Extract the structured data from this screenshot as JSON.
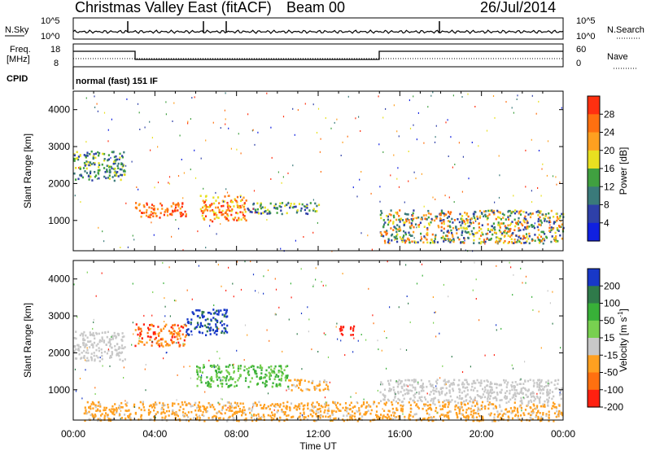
{
  "header": {
    "station": "Christmas Valley East (fitACF)",
    "beam": "Beam 00",
    "date": "26/Jul/2014"
  },
  "strip_labels": {
    "nsky": "N.Sky",
    "nsearch": "N.Search",
    "freq": "Freq.",
    "freq_unit": "[MHz]",
    "nave": "Nave",
    "cpid": "CPID",
    "cpid_value": "normal (fast) 151 IF"
  },
  "strip_ticks": {
    "noise_left": [
      "10^5",
      "10^0"
    ],
    "noise_right": [
      "10^5",
      "10^0"
    ],
    "freq_left": [
      "18",
      "8"
    ],
    "nave_right": [
      "60",
      "0"
    ]
  },
  "chart_data": [
    {
      "type": "heatmap",
      "title": "",
      "ylabel": "Slant Range [km]",
      "xlabel": "Time UT",
      "ylim": [
        180,
        4500
      ],
      "xlim": [
        "00:00",
        "24:00"
      ],
      "yticks": [
        1000,
        2000,
        3000,
        4000
      ],
      "xticks": [
        "00:00",
        "04:00",
        "08:00",
        "12:00",
        "16:00",
        "20:00",
        "00:00"
      ],
      "colorbar": {
        "label": "Power [dB]",
        "ticks": [
          "4",
          "8",
          "12",
          "16",
          "20",
          "24",
          "28"
        ],
        "colors": [
          "#1020e0",
          "#2e40a8",
          "#3a7a7a",
          "#40a040",
          "#e8e020",
          "#ffa020",
          "#ff7010",
          "#ff3010"
        ]
      },
      "regions": [
        {
          "t0": 0.0,
          "t1": 2.5,
          "r0": 2100,
          "r1": 2900,
          "level": "12-16"
        },
        {
          "t0": 3.0,
          "t1": 5.5,
          "r0": 1100,
          "r1": 1500,
          "level": "24-28"
        },
        {
          "t0": 6.2,
          "t1": 8.5,
          "r0": 1000,
          "r1": 1700,
          "level": "20-28"
        },
        {
          "t0": 8.5,
          "t1": 12.0,
          "r0": 1200,
          "r1": 1500,
          "level": "8-20"
        },
        {
          "t0": 15.0,
          "t1": 24.0,
          "r0": 400,
          "r1": 1300,
          "level": "8-24"
        }
      ]
    },
    {
      "type": "heatmap",
      "title": "",
      "ylabel": "Slant Range [km]",
      "xlabel": "Time UT",
      "ylim": [
        180,
        4500
      ],
      "xlim": [
        "00:00",
        "24:00"
      ],
      "yticks": [
        1000,
        2000,
        3000,
        4000
      ],
      "xticks": [
        "00:00",
        "04:00",
        "08:00",
        "12:00",
        "16:00",
        "20:00",
        "00:00"
      ],
      "colorbar": {
        "label": "Velocity [m s^-1]",
        "ticks": [
          "200",
          "100",
          "50",
          "15",
          "-15",
          "-50",
          "-100",
          "-200"
        ],
        "colors": [
          "#1838c8",
          "#2f7a4a",
          "#38b038",
          "#78d050",
          "#c8c8c8",
          "#ffa020",
          "#ff7010",
          "#ff2010"
        ]
      },
      "regions": [
        {
          "t0": 0.0,
          "t1": 2.5,
          "r0": 1800,
          "r1": 2600,
          "level": "-15-15"
        },
        {
          "t0": 3.0,
          "t1": 5.5,
          "r0": 2200,
          "r1": 2800,
          "level": "-200--50"
        },
        {
          "t0": 5.5,
          "t1": 7.5,
          "r0": 2500,
          "r1": 3200,
          "level": "100-200"
        },
        {
          "t0": 6.0,
          "t1": 10.5,
          "r0": 1100,
          "r1": 1700,
          "level": "15-100"
        },
        {
          "t0": 10.5,
          "t1": 12.5,
          "r0": 1000,
          "r1": 1300,
          "level": "-50--15"
        },
        {
          "t0": 13.0,
          "t1": 13.8,
          "r0": 2500,
          "r1": 2750,
          "level": "-200--100"
        },
        {
          "t0": 0.5,
          "t1": 24.0,
          "r0": 180,
          "r1": 700,
          "level": "-50--15"
        },
        {
          "t0": 15.0,
          "t1": 24.0,
          "r0": 700,
          "r1": 1300,
          "level": "-15-15"
        }
      ]
    }
  ]
}
